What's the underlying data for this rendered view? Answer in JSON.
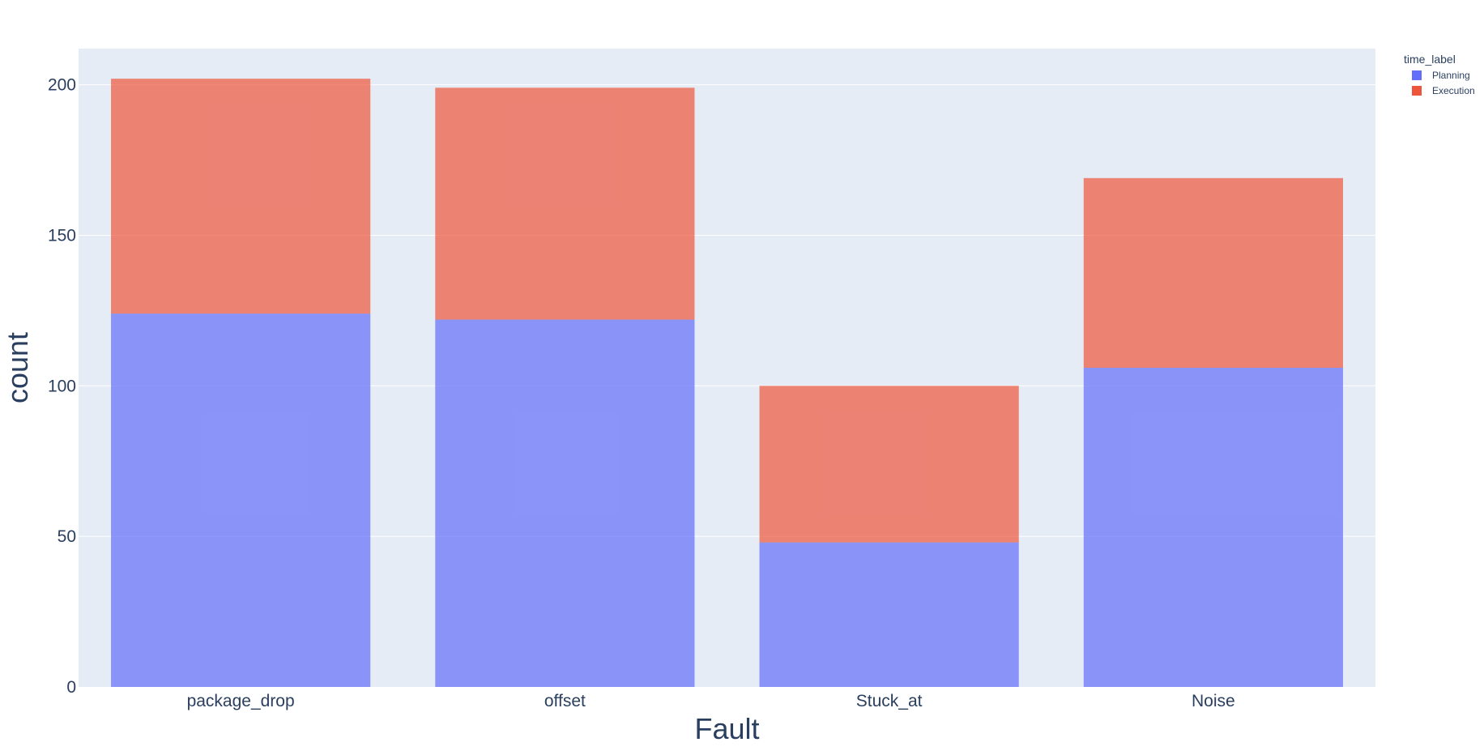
{
  "chart_data": {
    "type": "bar",
    "barmode": "stack",
    "categories": [
      "package_drop",
      "offset",
      "Stuck_at",
      "Noise"
    ],
    "series": [
      {
        "name": "Planning",
        "values": [
          124,
          122,
          48,
          106
        ],
        "color": "#636efa"
      },
      {
        "name": "Execution",
        "values": [
          78,
          77,
          52,
          63
        ],
        "color": "#ef553b"
      }
    ],
    "xlabel": "Fault",
    "ylabel": "count",
    "ylim": [
      0,
      212
    ],
    "yticks": [
      0,
      50,
      100,
      150,
      200
    ],
    "legend_title": "time_label",
    "legend_placement": "top-right",
    "grid": true,
    "plot_background": "#e5ecf6",
    "bar_opacity": 0.7
  }
}
